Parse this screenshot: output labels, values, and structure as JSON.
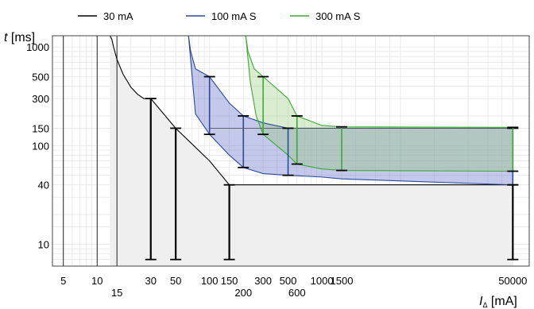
{
  "chart_data": {
    "type": "line",
    "legend": [
      {
        "name": "30 mA",
        "color": "#000000"
      },
      {
        "name": "100 mA S",
        "color": "#2b4a9a"
      },
      {
        "name": "300 mA S",
        "color": "#3aaa35"
      }
    ],
    "legend_position": "top",
    "axes": {
      "x": {
        "label_var": "I",
        "label_sub": "Δ",
        "label_unit": "[mA]",
        "scale": "log",
        "xlim": [
          4,
          70000
        ]
      },
      "y": {
        "label_var": "t",
        "label_unit": "[ms]",
        "scale": "log",
        "ylim": [
          6,
          1300
        ]
      }
    },
    "x_ticks": [
      {
        "value": 5,
        "label": "5",
        "row": 0
      },
      {
        "value": 10,
        "label": "10",
        "row": 0
      },
      {
        "value": 15,
        "label": "15",
        "row": 1
      },
      {
        "value": 30,
        "label": "30",
        "row": 0
      },
      {
        "value": 50,
        "label": "50",
        "row": 0
      },
      {
        "value": 100,
        "label": "100",
        "row": 0
      },
      {
        "value": 150,
        "label": "150",
        "row": 0
      },
      {
        "value": 200,
        "label": "200",
        "row": 1
      },
      {
        "value": 300,
        "label": "300",
        "row": 0
      },
      {
        "value": 500,
        "label": "500",
        "row": 0
      },
      {
        "value": 600,
        "label": "600",
        "row": 1
      },
      {
        "value": 1000,
        "label": "1000",
        "row": 0
      },
      {
        "value": 1500,
        "label": "1500",
        "row": 0
      },
      {
        "value": 50000,
        "label": "50000",
        "row": 0
      }
    ],
    "y_ticks": [
      {
        "value": 1000,
        "label": "1000"
      },
      {
        "value": 500,
        "label": "500"
      },
      {
        "value": 300,
        "label": "300"
      },
      {
        "value": 150,
        "label": "150"
      },
      {
        "value": 100,
        "label": "100"
      },
      {
        "value": 40,
        "label": "40"
      },
      {
        "value": 10,
        "label": "10"
      }
    ],
    "grid": true,
    "background_vertical_lines": [
      5,
      10,
      15
    ],
    "series": [
      {
        "name": "30 mA",
        "color": "#000000",
        "fill": "#efefef",
        "curve_x": [
          13,
          13.5,
          14,
          15,
          17,
          20,
          23,
          26,
          30,
          50,
          100,
          150,
          50000
        ],
        "curve_y": [
          1300,
          1200,
          1000,
          750,
          530,
          390,
          330,
          300,
          300,
          150,
          70,
          40,
          40
        ],
        "error_bars": [
          {
            "x": 30,
            "lo": 7,
            "hi": 300
          },
          {
            "x": 50,
            "lo": 7,
            "hi": 150
          },
          {
            "x": 150,
            "lo": 7,
            "hi": 40
          },
          {
            "x": 50000,
            "lo": 7,
            "hi": 40
          }
        ]
      },
      {
        "name": "100 mA S",
        "color": "#2b4a9a",
        "fill": "rgba(100,110,200,0.38)",
        "upper_x": [
          65,
          68,
          75,
          100,
          150,
          200,
          300,
          500,
          1000,
          1500,
          50000
        ],
        "upper_y": [
          1300,
          900,
          600,
          500,
          270,
          200,
          170,
          150,
          150,
          150,
          150
        ],
        "lower_x": [
          65,
          75,
          100,
          150,
          200,
          300,
          500,
          1000,
          1500,
          50000
        ],
        "lower_y": [
          1300,
          210,
          130,
          80,
          60,
          52,
          50,
          48,
          46,
          40
        ],
        "error_bars": [
          {
            "x": 100,
            "lo": 130,
            "hi": 500
          },
          {
            "x": 200,
            "lo": 60,
            "hi": 200
          },
          {
            "x": 500,
            "lo": 50,
            "hi": 150
          },
          {
            "x": 50000,
            "lo": 40,
            "hi": 150
          }
        ]
      },
      {
        "name": "300 mA S",
        "color": "#3aaa35",
        "fill": "rgba(140,200,110,0.32)",
        "upper_x": [
          210,
          220,
          250,
          300,
          500,
          600,
          1000,
          1500,
          50000
        ],
        "upper_y": [
          1300,
          900,
          600,
          500,
          300,
          200,
          160,
          155,
          153
        ],
        "lower_x": [
          210,
          230,
          260,
          300,
          500,
          600,
          1000,
          1500,
          50000
        ],
        "lower_y": [
          1300,
          450,
          200,
          130,
          80,
          65,
          58,
          56,
          55
        ],
        "error_bars": [
          {
            "x": 300,
            "lo": 130,
            "hi": 500
          },
          {
            "x": 600,
            "lo": 65,
            "hi": 200
          },
          {
            "x": 1500,
            "lo": 56,
            "hi": 155
          },
          {
            "x": 50000,
            "lo": 55,
            "hi": 153
          }
        ]
      }
    ],
    "reference_line": {
      "x": [
        100,
        50000
      ],
      "y": [
        150,
        150
      ],
      "color": "#555555"
    }
  }
}
